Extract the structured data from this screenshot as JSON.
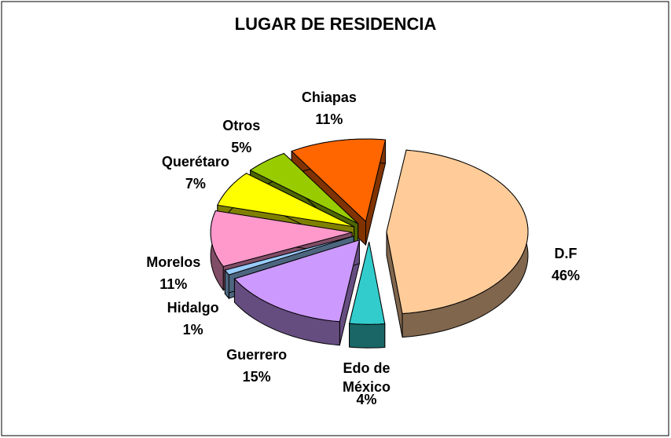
{
  "chart_data": {
    "type": "pie",
    "title": "LUGAR DE RESIDENCIA",
    "categories": [
      "D.F",
      "Edo de México",
      "Guerrero",
      "Hidalgo",
      "Morelos",
      "Querétaro",
      "Otros",
      "Chiapas"
    ],
    "values": [
      46,
      4,
      15,
      1,
      11,
      7,
      5,
      11
    ],
    "value_labels": [
      "46%",
      "4%",
      "15%",
      "1%",
      "11%",
      "7%",
      "5%",
      "11%"
    ],
    "colors": [
      "#FFCC99",
      "#33CCCC",
      "#CC99FF",
      "#99CCFF",
      "#FF99CC",
      "#FFFF00",
      "#99CC00",
      "#FF6600"
    ]
  }
}
